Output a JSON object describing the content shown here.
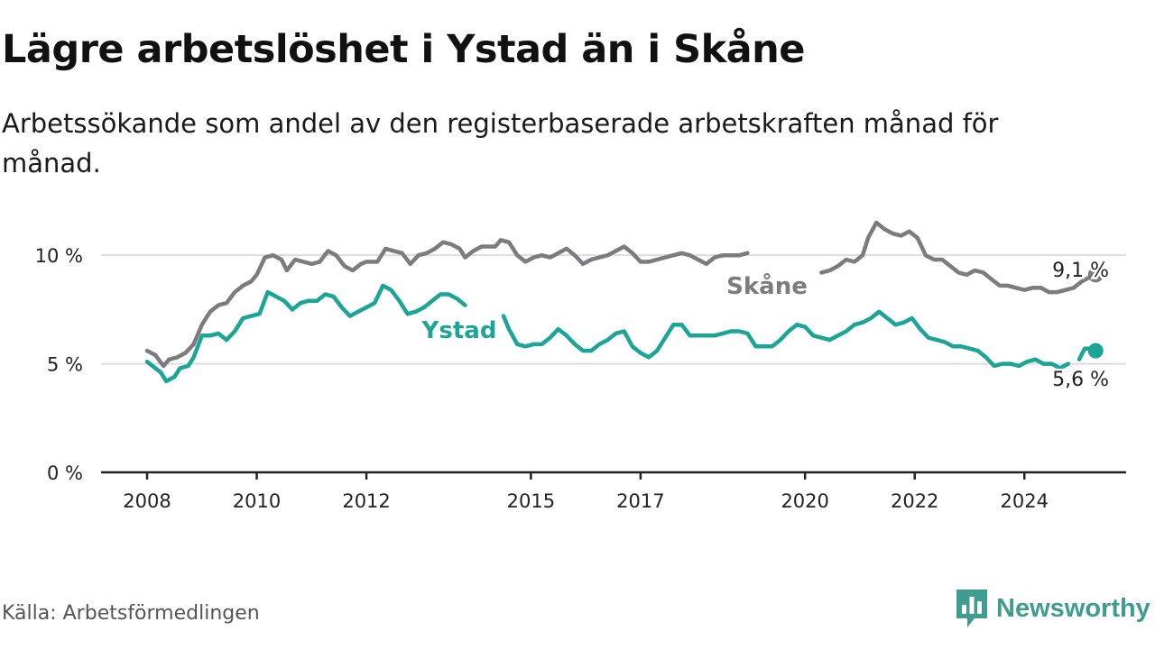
{
  "title": "Lägre arbetslöshet i Ystad än i Skåne",
  "subtitle": "Arbetssökande som andel av den registerbaserade arbetskraften månad för månad.",
  "source": "Källa: Arbetsförmedlingen",
  "brand": {
    "name": "Newsworthy"
  },
  "colors": {
    "skane": "#7b7b80",
    "ystad": "#1aa596",
    "grid": "#dcdcdc",
    "axis": "#222222",
    "brand": "#3f9c91"
  },
  "chart_data": {
    "type": "line",
    "title": "Lägre arbetslöshet i Ystad än i Skåne",
    "xlabel": "",
    "ylabel": "",
    "ylim": [
      0,
      12
    ],
    "xlim": [
      2008.0,
      2025.0
    ],
    "y_ticks": [
      {
        "value": 0,
        "label": "0 %"
      },
      {
        "value": 5,
        "label": "5 %"
      },
      {
        "value": 10,
        "label": "10 %"
      }
    ],
    "x_ticks": [
      {
        "value": 2008,
        "label": "2008"
      },
      {
        "value": 2010,
        "label": "2010"
      },
      {
        "value": 2012,
        "label": "2012"
      },
      {
        "value": 2015,
        "label": "2015"
      },
      {
        "value": 2017,
        "label": "2017"
      },
      {
        "value": 2020,
        "label": "2020"
      },
      {
        "value": 2022,
        "label": "2022"
      },
      {
        "value": 2024,
        "label": "2024"
      }
    ],
    "series": [
      {
        "name": "Skåne",
        "label": "Skåne",
        "color": "#7b7b80",
        "end_label": "9,1 %",
        "points": [
          [
            2008.0,
            5.6
          ],
          [
            2008.15,
            5.4
          ],
          [
            2008.3,
            4.9
          ],
          [
            2008.4,
            5.2
          ],
          [
            2008.55,
            5.3
          ],
          [
            2008.7,
            5.5
          ],
          [
            2008.85,
            5.9
          ],
          [
            2009.0,
            6.8
          ],
          [
            2009.15,
            7.4
          ],
          [
            2009.3,
            7.7
          ],
          [
            2009.45,
            7.8
          ],
          [
            2009.6,
            8.3
          ],
          [
            2009.75,
            8.6
          ],
          [
            2009.9,
            8.8
          ],
          [
            2010.0,
            9.1
          ],
          [
            2010.15,
            9.9
          ],
          [
            2010.3,
            10.0
          ],
          [
            2010.45,
            9.8
          ],
          [
            2010.55,
            9.3
          ],
          [
            2010.7,
            9.8
          ],
          [
            2010.85,
            9.7
          ],
          [
            2011.0,
            9.6
          ],
          [
            2011.15,
            9.7
          ],
          [
            2011.3,
            10.2
          ],
          [
            2011.45,
            10.0
          ],
          [
            2011.6,
            9.5
          ],
          [
            2011.75,
            9.3
          ],
          [
            2011.9,
            9.6
          ],
          [
            2012.0,
            9.7
          ],
          [
            2012.2,
            9.7
          ],
          [
            2012.35,
            10.3
          ],
          [
            2012.5,
            10.2
          ],
          [
            2012.65,
            10.1
          ],
          [
            2012.8,
            9.6
          ],
          [
            2012.95,
            10.0
          ],
          [
            2013.1,
            10.1
          ],
          [
            2013.25,
            10.3
          ],
          [
            2013.4,
            10.6
          ],
          [
            2013.55,
            10.5
          ],
          [
            2013.7,
            10.3
          ],
          [
            2013.8,
            9.9
          ],
          [
            2013.95,
            10.2
          ],
          [
            2014.1,
            10.4
          ],
          [
            2014.25,
            10.4
          ],
          [
            2014.35,
            10.4
          ],
          [
            2014.45,
            10.7
          ],
          [
            2014.6,
            10.6
          ],
          [
            2014.75,
            10.0
          ],
          [
            2014.9,
            9.7
          ],
          [
            2015.05,
            9.9
          ],
          [
            2015.2,
            10.0
          ],
          [
            2015.35,
            9.9
          ],
          [
            2015.5,
            10.1
          ],
          [
            2015.65,
            10.3
          ],
          [
            2015.8,
            10.0
          ],
          [
            2015.95,
            9.6
          ],
          [
            2016.1,
            9.8
          ],
          [
            2016.25,
            9.9
          ],
          [
            2016.4,
            10.0
          ],
          [
            2016.55,
            10.2
          ],
          [
            2016.7,
            10.4
          ],
          [
            2016.85,
            10.1
          ],
          [
            2017.0,
            9.7
          ],
          [
            2017.15,
            9.7
          ],
          [
            2017.3,
            9.8
          ],
          [
            2017.45,
            9.9
          ],
          [
            2017.6,
            10.0
          ],
          [
            2017.75,
            10.1
          ],
          [
            2017.9,
            10.0
          ],
          [
            2018.05,
            9.8
          ],
          [
            2018.2,
            9.6
          ],
          [
            2018.35,
            9.9
          ],
          [
            2018.5,
            10.0
          ],
          [
            2018.65,
            10.0
          ],
          [
            2018.8,
            10.0
          ],
          [
            2018.95,
            10.1
          ],
          null,
          [
            2020.3,
            9.2
          ],
          [
            2020.45,
            9.3
          ],
          [
            2020.6,
            9.5
          ],
          [
            2020.75,
            9.8
          ],
          [
            2020.9,
            9.7
          ],
          [
            2021.05,
            10.0
          ],
          [
            2021.15,
            10.8
          ],
          [
            2021.3,
            11.5
          ],
          [
            2021.45,
            11.2
          ],
          [
            2021.6,
            11.0
          ],
          [
            2021.75,
            10.9
          ],
          [
            2021.9,
            11.1
          ],
          [
            2022.05,
            10.8
          ],
          [
            2022.2,
            10.0
          ],
          [
            2022.35,
            9.8
          ],
          [
            2022.5,
            9.8
          ],
          [
            2022.65,
            9.5
          ],
          [
            2022.8,
            9.2
          ],
          [
            2022.95,
            9.1
          ],
          [
            2023.1,
            9.3
          ],
          [
            2023.25,
            9.2
          ],
          [
            2023.4,
            8.9
          ],
          [
            2023.55,
            8.6
          ],
          [
            2023.7,
            8.6
          ],
          [
            2023.85,
            8.5
          ],
          [
            2024.0,
            8.4
          ],
          [
            2024.15,
            8.5
          ],
          [
            2024.3,
            8.5
          ],
          [
            2024.45,
            8.3
          ],
          [
            2024.6,
            8.3
          ],
          [
            2024.75,
            8.4
          ],
          [
            2024.9,
            8.5
          ],
          [
            2025.05,
            8.8
          ],
          [
            2025.2,
            9.0
          ],
          [
            2025.3,
            9.1
          ]
        ]
      },
      {
        "name": "Ystad",
        "label": "Ystad",
        "color": "#1aa596",
        "end_label": "5,6 %",
        "points": [
          [
            2008.0,
            5.1
          ],
          [
            2008.15,
            4.8
          ],
          [
            2008.25,
            4.6
          ],
          [
            2008.35,
            4.2
          ],
          [
            2008.5,
            4.4
          ],
          [
            2008.6,
            4.8
          ],
          [
            2008.75,
            4.9
          ],
          [
            2008.85,
            5.3
          ],
          [
            2009.0,
            6.3
          ],
          [
            2009.15,
            6.3
          ],
          [
            2009.3,
            6.4
          ],
          [
            2009.45,
            6.1
          ],
          [
            2009.6,
            6.5
          ],
          [
            2009.75,
            7.1
          ],
          [
            2009.9,
            7.2
          ],
          [
            2010.05,
            7.3
          ],
          [
            2010.2,
            8.3
          ],
          [
            2010.35,
            8.1
          ],
          [
            2010.5,
            7.9
          ],
          [
            2010.65,
            7.5
          ],
          [
            2010.8,
            7.8
          ],
          [
            2010.95,
            7.9
          ],
          [
            2011.1,
            7.9
          ],
          [
            2011.25,
            8.2
          ],
          [
            2011.4,
            8.1
          ],
          [
            2011.55,
            7.6
          ],
          [
            2011.7,
            7.2
          ],
          [
            2011.85,
            7.4
          ],
          [
            2012.0,
            7.6
          ],
          [
            2012.15,
            7.8
          ],
          [
            2012.3,
            8.6
          ],
          [
            2012.45,
            8.4
          ],
          [
            2012.6,
            7.9
          ],
          [
            2012.75,
            7.3
          ],
          [
            2012.9,
            7.4
          ],
          [
            2013.05,
            7.6
          ],
          [
            2013.2,
            7.9
          ],
          [
            2013.35,
            8.2
          ],
          [
            2013.5,
            8.2
          ],
          [
            2013.65,
            8.0
          ],
          [
            2013.8,
            7.7
          ],
          null,
          [
            2014.5,
            7.2
          ],
          [
            2014.6,
            6.6
          ],
          [
            2014.75,
            5.9
          ],
          [
            2014.9,
            5.8
          ],
          [
            2015.05,
            5.9
          ],
          [
            2015.2,
            5.9
          ],
          [
            2015.35,
            6.2
          ],
          [
            2015.5,
            6.6
          ],
          [
            2015.65,
            6.3
          ],
          [
            2015.8,
            5.9
          ],
          [
            2015.95,
            5.6
          ],
          [
            2016.1,
            5.6
          ],
          [
            2016.25,
            5.9
          ],
          [
            2016.4,
            6.1
          ],
          [
            2016.55,
            6.4
          ],
          [
            2016.7,
            6.5
          ],
          [
            2016.85,
            5.8
          ],
          [
            2017.0,
            5.5
          ],
          [
            2017.15,
            5.3
          ],
          [
            2017.3,
            5.6
          ],
          [
            2017.45,
            6.2
          ],
          [
            2017.6,
            6.8
          ],
          [
            2017.75,
            6.8
          ],
          [
            2017.9,
            6.3
          ],
          [
            2018.05,
            6.3
          ],
          [
            2018.2,
            6.3
          ],
          [
            2018.35,
            6.3
          ],
          [
            2018.5,
            6.4
          ],
          [
            2018.65,
            6.5
          ],
          [
            2018.8,
            6.5
          ],
          [
            2018.95,
            6.4
          ],
          [
            2019.1,
            5.8
          ],
          [
            2019.25,
            5.8
          ],
          [
            2019.4,
            5.8
          ],
          [
            2019.55,
            6.1
          ],
          [
            2019.7,
            6.5
          ],
          [
            2019.85,
            6.8
          ],
          [
            2020.0,
            6.7
          ],
          [
            2020.15,
            6.3
          ],
          [
            2020.3,
            6.2
          ],
          [
            2020.45,
            6.1
          ],
          [
            2020.6,
            6.3
          ],
          [
            2020.75,
            6.5
          ],
          [
            2020.9,
            6.8
          ],
          [
            2021.05,
            6.9
          ],
          [
            2021.2,
            7.1
          ],
          [
            2021.35,
            7.4
          ],
          [
            2021.5,
            7.1
          ],
          [
            2021.65,
            6.8
          ],
          [
            2021.8,
            6.9
          ],
          [
            2021.95,
            7.1
          ],
          [
            2022.1,
            6.6
          ],
          [
            2022.25,
            6.2
          ],
          [
            2022.4,
            6.1
          ],
          [
            2022.55,
            6.0
          ],
          [
            2022.7,
            5.8
          ],
          [
            2022.85,
            5.8
          ],
          [
            2023.0,
            5.7
          ],
          [
            2023.15,
            5.6
          ],
          [
            2023.3,
            5.3
          ],
          [
            2023.45,
            4.9
          ],
          [
            2023.6,
            5.0
          ],
          [
            2023.75,
            5.0
          ],
          [
            2023.9,
            4.9
          ],
          [
            2024.05,
            5.1
          ],
          [
            2024.2,
            5.2
          ],
          [
            2024.35,
            5.0
          ],
          [
            2024.5,
            5.0
          ],
          [
            2024.65,
            4.8
          ],
          [
            2024.8,
            5.0
          ],
          null,
          [
            2025.0,
            5.2
          ],
          [
            2025.1,
            5.7
          ],
          [
            2025.2,
            5.7
          ],
          [
            2025.3,
            5.6
          ]
        ]
      }
    ]
  }
}
